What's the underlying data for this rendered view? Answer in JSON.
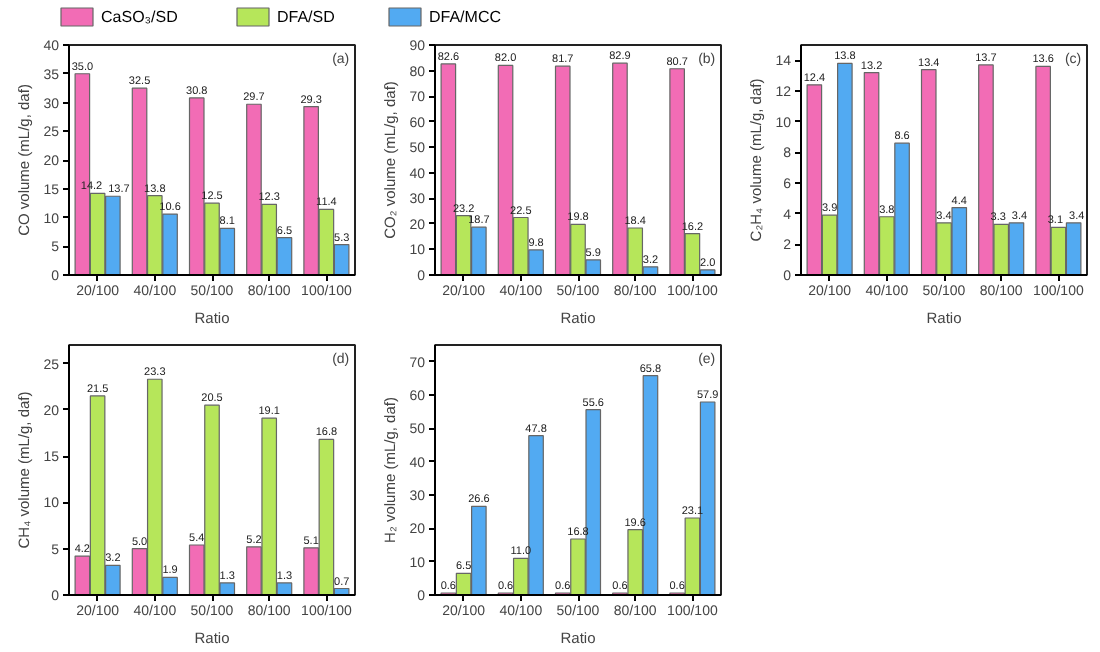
{
  "chart_data": [
    {
      "type": "bar",
      "categories": [
        "20/100",
        "40/100",
        "50/100",
        "80/100",
        "100/100"
      ],
      "xlabel": "Ratio",
      "ylabel": "CO volume (mL/g, daf)",
      "ylim": [
        0,
        40
      ],
      "yticks": [
        0,
        5,
        10,
        15,
        20,
        25,
        30,
        35,
        40
      ],
      "annotations": [
        "(a)"
      ],
      "grid": false,
      "legend": "top",
      "series": [
        {
          "name": "CaSO₃/SD",
          "color": "#f26cb5",
          "values": [
            35.0,
            32.5,
            30.8,
            29.7,
            29.3
          ],
          "value_labels": [
            "35.0",
            "32.5",
            "30.8",
            "29.7",
            "29.3"
          ]
        },
        {
          "name": "DFA/SD",
          "color": "#b6e65a",
          "values": [
            14.2,
            13.8,
            12.5,
            12.3,
            11.4
          ],
          "value_labels": [
            "14.2",
            "13.8",
            "12.5",
            "12.3",
            "11.4"
          ]
        },
        {
          "name": "DFA/MCC",
          "color": "#52aaf2",
          "values": [
            13.7,
            10.6,
            8.1,
            6.5,
            5.3
          ],
          "value_labels": [
            "13.7",
            "10.6",
            "8.1",
            "6.5",
            "5.3"
          ]
        }
      ]
    },
    {
      "type": "bar",
      "categories": [
        "20/100",
        "40/100",
        "50/100",
        "80/100",
        "100/100"
      ],
      "xlabel": "Ratio",
      "ylabel": "CO₂ volume (mL/g, daf)",
      "ylim": [
        0,
        90
      ],
      "yticks": [
        0,
        10,
        20,
        30,
        40,
        50,
        60,
        70,
        80,
        90
      ],
      "annotations": [
        "(b)"
      ],
      "grid": false,
      "series": [
        {
          "color": "#f26cb5",
          "values": [
            82.6,
            82.0,
            81.7,
            82.9,
            80.7
          ],
          "value_labels": [
            "82.6",
            "82.0",
            "81.7",
            "82.9",
            "80.7"
          ]
        },
        {
          "color": "#b6e65a",
          "values": [
            23.2,
            22.5,
            19.8,
            18.4,
            16.2
          ],
          "value_labels": [
            "23.2",
            "22.5",
            "19.8",
            "18.4",
            "16.2"
          ]
        },
        {
          "color": "#52aaf2",
          "values": [
            18.7,
            9.8,
            5.9,
            3.2,
            2.0
          ],
          "value_labels": [
            "18.7",
            "9.8",
            "5.9",
            "3.2",
            "2.0"
          ]
        }
      ]
    },
    {
      "type": "bar",
      "categories": [
        "20/100",
        "40/100",
        "50/100",
        "80/100",
        "100/100"
      ],
      "xlabel": "Ratio",
      "ylabel": "C₂H₄ volume (mL/g, daf)",
      "ylim": [
        0,
        15
      ],
      "yticks": [
        0,
        2,
        4,
        6,
        8,
        10,
        12,
        14
      ],
      "annotations": [
        "(c)"
      ],
      "grid": false,
      "series": [
        {
          "color": "#f26cb5",
          "values": [
            12.4,
            13.2,
            13.4,
            13.7,
            13.6
          ],
          "value_labels": [
            "12.4",
            "13.2",
            "13.4",
            "13.7",
            "13.6"
          ]
        },
        {
          "color": "#b6e65a",
          "values": [
            3.9,
            3.8,
            3.4,
            3.3,
            3.1
          ],
          "value_labels": [
            "3.9",
            "3.8",
            "3.4",
            "3.3",
            "3.1"
          ]
        },
        {
          "color": "#52aaf2",
          "values": [
            13.8,
            8.6,
            4.4,
            3.4,
            3.4
          ],
          "value_labels": [
            "13.8",
            "8.6",
            "4.4",
            "3.4",
            "3.4"
          ]
        }
      ]
    },
    {
      "type": "bar",
      "categories": [
        "20/100",
        "40/100",
        "50/100",
        "80/100",
        "100/100"
      ],
      "xlabel": "Ratio",
      "ylabel": "CH₄ volume (mL/g, daf)",
      "ylim": [
        0,
        27
      ],
      "yticks": [
        0,
        5,
        10,
        15,
        20,
        25
      ],
      "annotations": [
        "(d)"
      ],
      "grid": false,
      "series": [
        {
          "color": "#f26cb5",
          "values": [
            4.2,
            5.0,
            5.4,
            5.2,
            5.1
          ],
          "value_labels": [
            "4.2",
            "5.0",
            "5.4",
            "5.2",
            "5.1"
          ]
        },
        {
          "color": "#b6e65a",
          "values": [
            21.5,
            23.3,
            20.5,
            19.1,
            16.8
          ],
          "value_labels": [
            "21.5",
            "23.3",
            "20.5",
            "19.1",
            "16.8"
          ]
        },
        {
          "color": "#52aaf2",
          "values": [
            3.2,
            1.9,
            1.3,
            1.3,
            0.7
          ],
          "value_labels": [
            "3.2",
            "1.9",
            "1.3",
            "1.3",
            "0.7"
          ]
        }
      ]
    },
    {
      "type": "bar",
      "categories": [
        "20/100",
        "40/100",
        "50/100",
        "80/100",
        "100/100"
      ],
      "xlabel": "Ratio",
      "ylabel": "H₂ volume (mL/g, daf)",
      "ylim": [
        0,
        75
      ],
      "yticks": [
        0,
        10,
        20,
        30,
        40,
        50,
        60,
        70
      ],
      "annotations": [
        "(e)"
      ],
      "grid": false,
      "series": [
        {
          "color": "#f26cb5",
          "values": [
            0.6,
            0.6,
            0.6,
            0.6,
            0.6
          ],
          "value_labels": [
            "0.6",
            "0.6",
            "0.6",
            "0.6",
            "0.6"
          ]
        },
        {
          "color": "#b6e65a",
          "values": [
            6.5,
            11.0,
            16.8,
            19.6,
            23.1
          ],
          "value_labels": [
            "6.5",
            "11.0",
            "16.8",
            "19.6",
            "23.1"
          ]
        },
        {
          "color": "#52aaf2",
          "values": [
            26.6,
            47.8,
            55.6,
            65.8,
            57.9
          ],
          "value_labels": [
            "26.6",
            "47.8",
            "55.6",
            "65.8",
            "57.9"
          ]
        }
      ]
    }
  ]
}
